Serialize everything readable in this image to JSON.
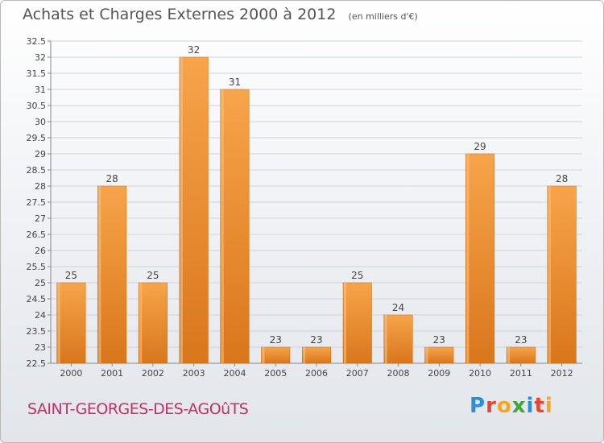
{
  "title": "Achats et Charges Externes 2000 à 2012",
  "subtitle": "(en milliers d'€)",
  "commune": "SAINT-GEORGES-DES-AGOûTS",
  "logo": {
    "letters": [
      "P",
      "r",
      "o",
      "x",
      "i",
      "t",
      "i"
    ],
    "colors": [
      "#2a8fd6",
      "#e8452c",
      "#f5a623",
      "#3aa935",
      "#2a8fd6",
      "#e8452c",
      "#f5a623"
    ]
  },
  "colors": {
    "bar": "#f0932f",
    "bar_dark": "#d9761c",
    "grid": "#cfd3da",
    "axis": "#888888",
    "text": "#444444"
  },
  "chart_data": {
    "type": "bar",
    "categories": [
      "2000",
      "2001",
      "2002",
      "2003",
      "2004",
      "2005",
      "2006",
      "2007",
      "2008",
      "2009",
      "2010",
      "2011",
      "2012"
    ],
    "values": [
      25,
      28,
      25,
      32,
      31,
      23,
      23,
      25,
      24,
      23,
      29,
      23,
      28
    ],
    "data_labels": [
      "25",
      "28",
      "25",
      "32",
      "31",
      "23",
      "23",
      "25",
      "24",
      "23",
      "29",
      "23",
      "28"
    ],
    "yticks": [
      22.5,
      23,
      23.5,
      24,
      24.5,
      25,
      25.5,
      26,
      26.5,
      27,
      27.5,
      28,
      28.5,
      29,
      29.5,
      30,
      30.5,
      31,
      31.5,
      32,
      32.5
    ],
    "ytick_labels": [
      "22.5",
      "23",
      "23.5",
      "24",
      "24.5",
      "25",
      "25.5",
      "26",
      "26.5",
      "27",
      "27.5",
      "28",
      "28.5",
      "29",
      "29.5",
      "30",
      "30.5",
      "31",
      "31.5",
      "32",
      "32.5"
    ],
    "ylim": [
      22.5,
      32.5
    ],
    "grid": true,
    "legend": "none"
  }
}
